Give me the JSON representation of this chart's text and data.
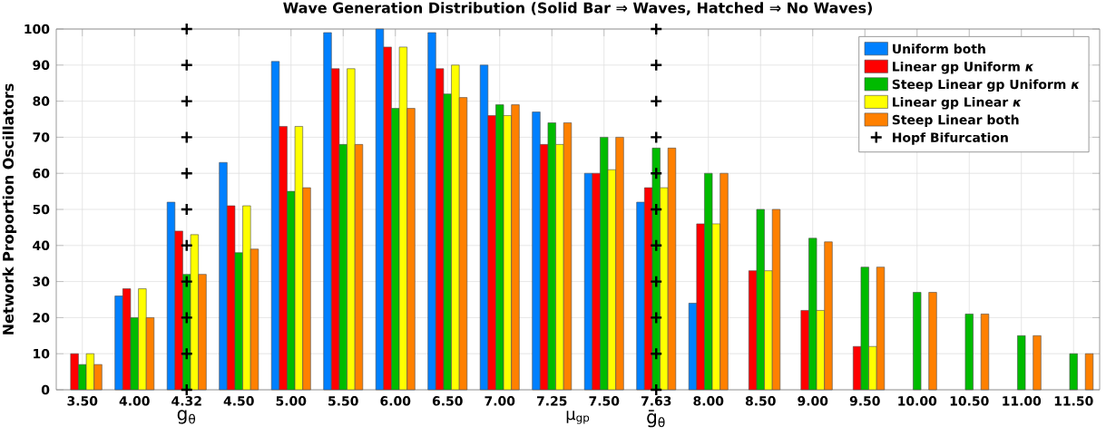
{
  "chart_data": {
    "type": "bar",
    "title": "Wave Generation Distribution (Solid Bar ⇒ Waves, Hatched ⇒ No Waves)",
    "xlabel": "μ$_{gp}$",
    "ylabel": "Network Proportion Oscillators",
    "categories": [
      "3.50",
      "4.00",
      "4.32",
      "4.50",
      "5.00",
      "5.50",
      "6.00",
      "6.50",
      "7.00",
      "7.25",
      "7.50",
      "7.63",
      "8.00",
      "8.50",
      "9.00",
      "9.50",
      "10.00",
      "10.50",
      "11.00",
      "11.50"
    ],
    "series": [
      {
        "name": "Uniform both",
        "color": "#0080ff",
        "values": [
          null,
          26,
          52,
          63,
          91,
          99,
          100,
          99,
          90,
          77,
          60,
          52,
          24,
          null,
          null,
          null,
          null,
          null,
          null,
          null
        ]
      },
      {
        "name": "Linear gp Uniform *κ*",
        "color": "#ff0000",
        "values": [
          10,
          28,
          44,
          51,
          73,
          89,
          95,
          89,
          76,
          68,
          60,
          56,
          46,
          33,
          22,
          12,
          null,
          null,
          null,
          null
        ]
      },
      {
        "name": "Steep Linear gp Uniform *κ*",
        "color": "#00bb00",
        "values": [
          7,
          20,
          32,
          38,
          55,
          68,
          78,
          82,
          79,
          74,
          70,
          67,
          60,
          50,
          42,
          34,
          27,
          21,
          15,
          10
        ]
      },
      {
        "name": "Linear gp Linear *κ*",
        "color": "#ffff00",
        "values": [
          10,
          28,
          43,
          51,
          73,
          89,
          95,
          90,
          76,
          68,
          61,
          56,
          46,
          33,
          22,
          12,
          null,
          null,
          null,
          null
        ]
      },
      {
        "name": "Steep Linear both",
        "color": "#ff8000",
        "values": [
          7,
          20,
          32,
          39,
          56,
          68,
          78,
          81,
          79,
          74,
          70,
          67,
          60,
          50,
          41,
          34,
          27,
          21,
          15,
          10
        ]
      },
      {
        "name": "Hopf Bifurcation",
        "type": "scatter",
        "marker": "cross",
        "color": "#000000",
        "x": [
          "4.32",
          "4.32",
          "4.32",
          "4.32",
          "4.32",
          "4.32",
          "4.32",
          "4.32",
          "4.32",
          "4.32",
          "4.32",
          "7.63",
          "7.63",
          "7.63",
          "7.63",
          "7.63",
          "7.63",
          "7.63",
          "7.63",
          "7.63",
          "7.63",
          "7.63"
        ],
        "values": [
          0,
          10,
          20,
          30,
          40,
          50,
          60,
          70,
          80,
          90,
          100,
          0,
          10,
          20,
          30,
          40,
          50,
          60,
          70,
          80,
          90,
          100
        ]
      }
    ],
    "ylim": [
      0,
      100
    ],
    "yticks": [
      0,
      10,
      20,
      30,
      40,
      50,
      60,
      70,
      80,
      90,
      100
    ],
    "grid": true,
    "legend": "top right",
    "annotations": [
      "g$_{θ}$",
      "ḡ$_{θ}$"
    ]
  }
}
